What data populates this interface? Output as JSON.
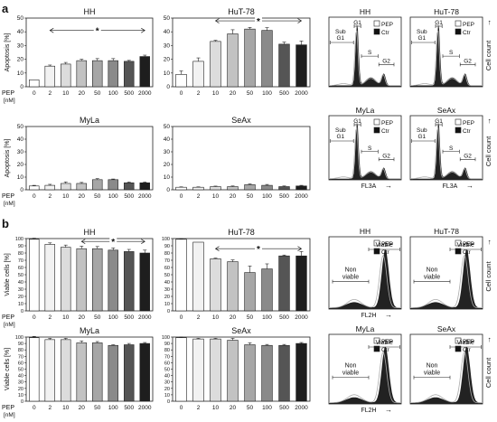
{
  "panel_labels": [
    "a",
    "b"
  ],
  "pep_unit_label": "PEP",
  "pep_unit_sub": "[nM]",
  "bar_colors": [
    "#ffffff",
    "#f2f2f2",
    "#dcdcdc",
    "#c2c2c2",
    "#a6a6a6",
    "#8a8a8a",
    "#555555",
    "#1e1e1e"
  ],
  "chart_data": [
    {
      "type": "bar",
      "panel": "a",
      "title": "HH",
      "ylabel": "Apoptosis [%]",
      "ylim": [
        0,
        50
      ],
      "yticks": [
        0,
        10,
        20,
        30,
        40,
        50
      ],
      "categories": [
        "0",
        "2",
        "10",
        "20",
        "50",
        "100",
        "500",
        "2000"
      ],
      "values": [
        5,
        15,
        16.5,
        19,
        19,
        19,
        18.5,
        22
      ],
      "errors": [
        0,
        0.8,
        1.2,
        1,
        1.5,
        1.5,
        0.7,
        1
      ],
      "significance": {
        "from": 1,
        "to": 7,
        "label": "*",
        "level": 41
      }
    },
    {
      "type": "bar",
      "panel": "a",
      "title": "HuT-78",
      "ylabel": "",
      "ylim": [
        0,
        50
      ],
      "yticks": [
        0,
        10,
        20,
        30,
        40,
        50
      ],
      "categories": [
        "0",
        "2",
        "10",
        "20",
        "50",
        "100",
        "500",
        "2000"
      ],
      "values": [
        9,
        18.5,
        33,
        38.5,
        42,
        41,
        31,
        30.5
      ],
      "errors": [
        2.5,
        2.5,
        0.8,
        3,
        1.2,
        2,
        1.5,
        2.8
      ],
      "significance": {
        "from": 2,
        "to": 7,
        "label": "*",
        "level": 48
      }
    },
    {
      "type": "bar",
      "panel": "a",
      "title": "MyLa",
      "ylabel": "Apoptosis [%]",
      "ylim": [
        0,
        50
      ],
      "yticks": [
        0,
        10,
        20,
        30,
        40,
        50
      ],
      "categories": [
        "0",
        "2",
        "10",
        "20",
        "50",
        "100",
        "500",
        "2000"
      ],
      "values": [
        3,
        3.5,
        5,
        5,
        8,
        8,
        5.5,
        5.5
      ],
      "errors": [
        0.5,
        0.8,
        1.2,
        0.8,
        0.8,
        0.5,
        0.6,
        0.6
      ]
    },
    {
      "type": "bar",
      "panel": "a",
      "title": "SeAx",
      "ylabel": "",
      "ylim": [
        0,
        50
      ],
      "yticks": [
        0,
        10,
        20,
        30,
        40,
        50
      ],
      "categories": [
        "0",
        "2",
        "10",
        "20",
        "50",
        "100",
        "500",
        "2000"
      ],
      "values": [
        2,
        2,
        2.5,
        2.5,
        4,
        3.5,
        2.5,
        3
      ],
      "errors": [
        0.3,
        0.3,
        0.4,
        0.5,
        0.6,
        0.7,
        0.5,
        0.5
      ]
    },
    {
      "type": "bar",
      "panel": "b",
      "title": "HH",
      "ylabel": "Viable cells [%]",
      "ylim": [
        0,
        100
      ],
      "yticks": [
        0,
        10,
        20,
        30,
        40,
        50,
        60,
        70,
        80,
        90,
        100
      ],
      "categories": [
        "0",
        "2",
        "10",
        "20",
        "50",
        "100",
        "500",
        "2000"
      ],
      "values": [
        99,
        92,
        88,
        86,
        86,
        84,
        82,
        80
      ],
      "errors": [
        1.5,
        2,
        3,
        3.5,
        3,
        3,
        3,
        4
      ],
      "significance": {
        "from": 3,
        "to": 7,
        "label": "*",
        "level": 96
      }
    },
    {
      "type": "bar",
      "panel": "b",
      "title": "HuT-78",
      "ylabel": "",
      "ylim": [
        0,
        100
      ],
      "yticks": [
        0,
        10,
        20,
        30,
        40,
        50,
        60,
        70,
        80,
        90,
        100
      ],
      "categories": [
        "0",
        "2",
        "10",
        "20",
        "50",
        "100",
        "500",
        "2000"
      ],
      "values": [
        99,
        95,
        72,
        68,
        53,
        58,
        76,
        76
      ],
      "errors": [
        0.8,
        0,
        1,
        2.5,
        9,
        7,
        1.2,
        6
      ],
      "significance": {
        "from": 2,
        "to": 7,
        "label": "*",
        "level": 86
      }
    },
    {
      "type": "bar",
      "panel": "b",
      "title": "MyLa",
      "ylabel": "Viable cells [%]",
      "ylim": [
        0,
        100
      ],
      "yticks": [
        0,
        10,
        20,
        30,
        40,
        50,
        60,
        70,
        80,
        90,
        100
      ],
      "categories": [
        "0",
        "2",
        "10",
        "20",
        "50",
        "100",
        "500",
        "2000"
      ],
      "values": [
        99,
        96,
        96,
        91,
        91,
        87,
        88,
        90
      ],
      "errors": [
        2,
        2,
        2,
        3,
        2,
        1,
        2,
        1.5
      ]
    },
    {
      "type": "bar",
      "panel": "b",
      "title": "SeAx",
      "ylabel": "",
      "ylim": [
        0,
        100
      ],
      "yticks": [
        0,
        10,
        20,
        30,
        40,
        50,
        60,
        70,
        80,
        90,
        100
      ],
      "categories": [
        "0",
        "2",
        "10",
        "20",
        "50",
        "100",
        "500",
        "2000"
      ],
      "values": [
        99,
        97,
        97,
        95,
        88,
        87,
        87,
        90
      ],
      "errors": [
        1,
        1,
        1,
        3,
        3,
        1.5,
        1.5,
        1.5
      ]
    }
  ],
  "histograms": [
    {
      "panel": "a",
      "title": "HH",
      "kind": "cycle",
      "regions": [
        "Sub G1",
        "G1",
        "S",
        "G2"
      ],
      "legend": [
        "PEP",
        "Ctr"
      ],
      "show_ylabel": false,
      "xlabel": ""
    },
    {
      "panel": "a",
      "title": "HuT-78",
      "kind": "cycle",
      "regions": [
        "Sub G1",
        "G1",
        "S",
        "G2"
      ],
      "legend": [
        "PEP",
        "Ctr"
      ],
      "show_ylabel": true,
      "xlabel": ""
    },
    {
      "panel": "a",
      "title": "MyLa",
      "kind": "cycle",
      "regions": [
        "Sub G1",
        "G1",
        "S",
        "G2"
      ],
      "legend": [
        "PEP",
        "Ctr"
      ],
      "show_ylabel": false,
      "xlabel": "FL3A"
    },
    {
      "panel": "a",
      "title": "SeAx",
      "kind": "cycle",
      "regions": [
        "Sub G1",
        "G1",
        "S",
        "G2"
      ],
      "legend": [
        "PEP",
        "Ctr"
      ],
      "show_ylabel": true,
      "xlabel": "FL3A"
    },
    {
      "panel": "b",
      "title": "HH",
      "kind": "viability",
      "regions": [
        "Non viable",
        "Viable"
      ],
      "legend": [
        "PEP",
        "Ctr"
      ],
      "show_ylabel": false,
      "xlabel": "FL2H"
    },
    {
      "panel": "b",
      "title": "HuT-78",
      "kind": "viability",
      "regions": [
        "Non viable",
        "Viable"
      ],
      "legend": [
        "PEP",
        "Ctr"
      ],
      "show_ylabel": true,
      "xlabel": ""
    },
    {
      "panel": "b",
      "title": "MyLa",
      "kind": "viability",
      "regions": [
        "Non viable",
        "Viable"
      ],
      "legend": [
        "PEP",
        "Ctr"
      ],
      "show_ylabel": false,
      "xlabel": "FL2H"
    },
    {
      "panel": "b",
      "title": "SeAx",
      "kind": "viability",
      "regions": [
        "Non viable",
        "Viable"
      ],
      "legend": [
        "PEP",
        "Ctr"
      ],
      "show_ylabel": true,
      "xlabel": ""
    }
  ],
  "histogram_ylabel": "Cell count",
  "axis_arrow_glyph": "→"
}
